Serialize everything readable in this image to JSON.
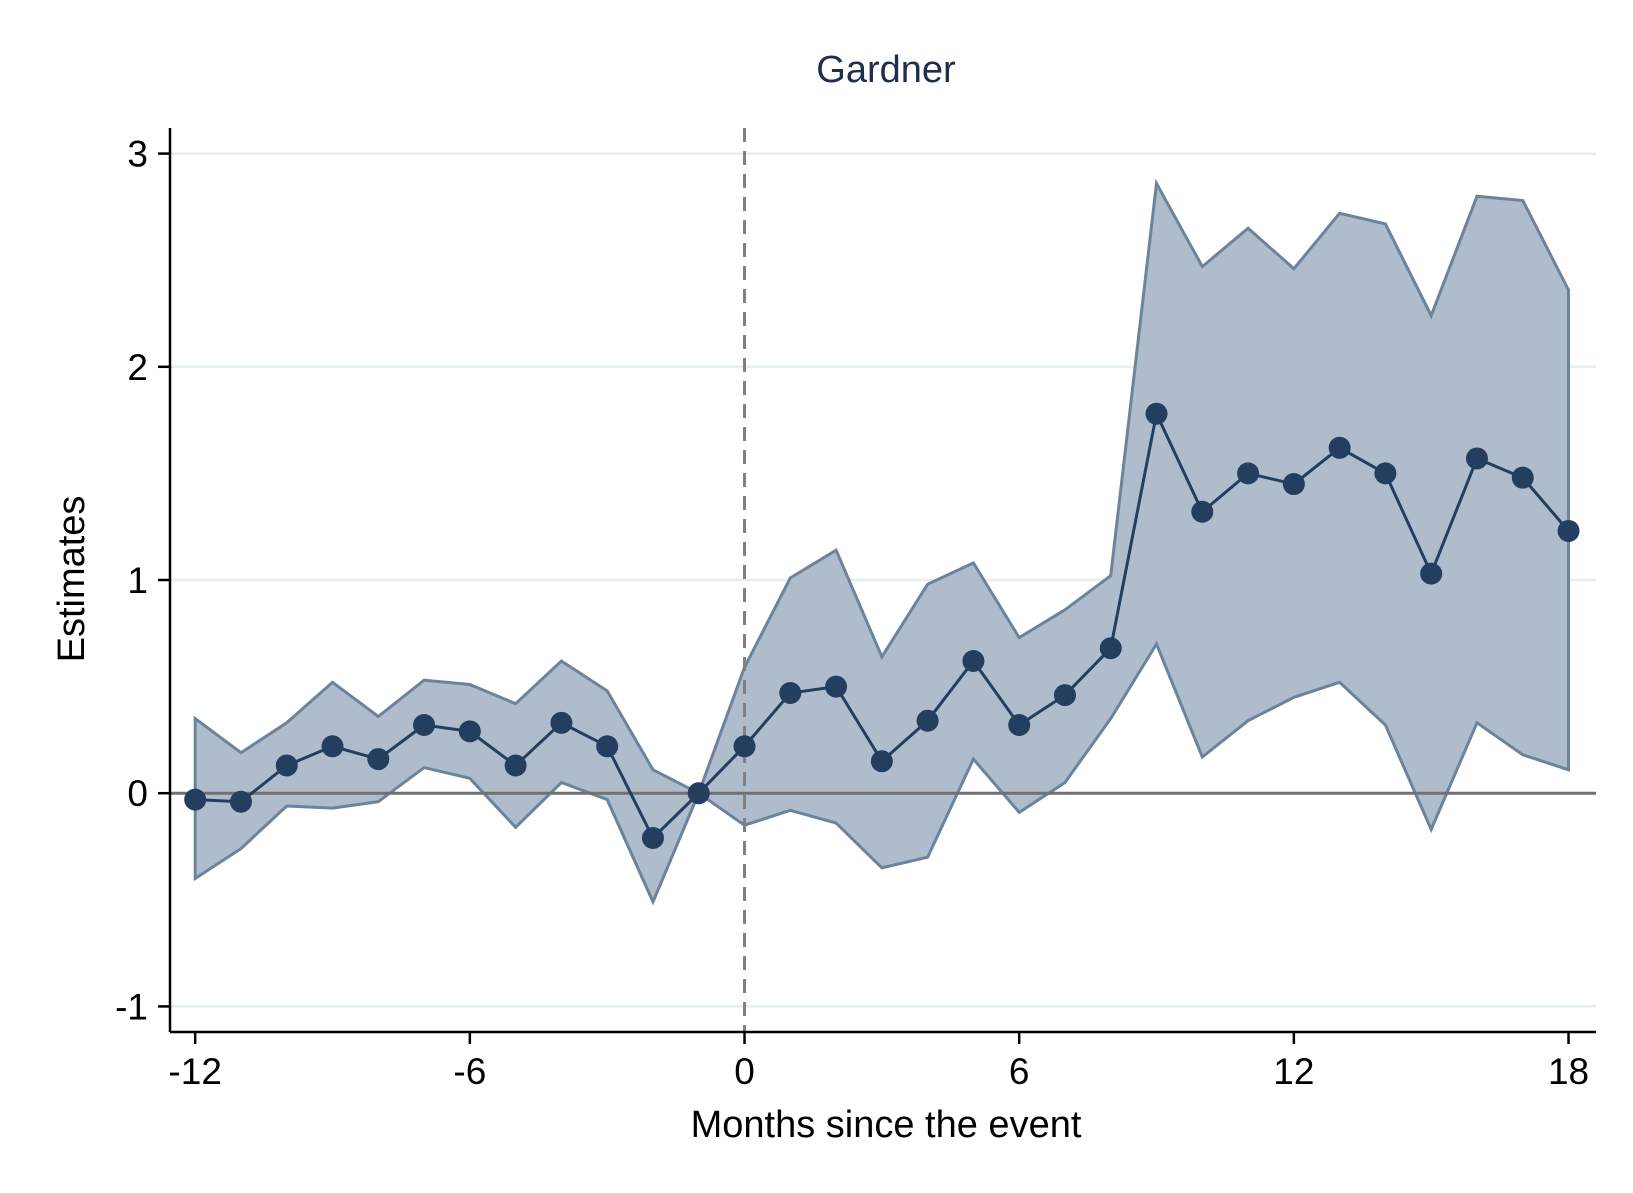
{
  "chart_data": {
    "type": "line",
    "title": "Gardner",
    "xlabel": "Months since the event",
    "ylabel": "Estimates",
    "xlim": [
      -12.55,
      18.6
    ],
    "ylim": [
      -1.12,
      3.12
    ],
    "xticks": [
      -12,
      -6,
      0,
      6,
      12,
      18
    ],
    "yticks": [
      -1,
      0,
      1,
      2,
      3
    ],
    "grid": "horizontal",
    "reference_lines": {
      "horizontal_y": 0,
      "vertical_dashed_x": 0
    },
    "colors": {
      "line": "#233e5f",
      "band_fill": "#aebccb",
      "band_edge": "#6b849c",
      "zero_line": "#707070",
      "vline": "#808080",
      "grid": "#e4eeee"
    },
    "series": [
      {
        "x": [
          -12,
          -11,
          -10,
          -9,
          -8,
          -7,
          -6,
          -5,
          -4,
          -3,
          -2,
          -1,
          0,
          1,
          2,
          3,
          4,
          5,
          6,
          7,
          8,
          9,
          10,
          11,
          12,
          13,
          14,
          15,
          16,
          17,
          18
        ],
        "estimate": [
          -0.03,
          -0.04,
          0.13,
          0.22,
          0.16,
          0.32,
          0.29,
          0.13,
          0.33,
          0.22,
          -0.21,
          0.0,
          0.22,
          0.47,
          0.5,
          0.15,
          0.34,
          0.62,
          0.32,
          0.46,
          0.68,
          1.78,
          1.32,
          1.5,
          1.45,
          1.62,
          1.5,
          1.03,
          1.57,
          1.48,
          1.23
        ],
        "ci_upper": [
          0.35,
          0.19,
          0.33,
          0.52,
          0.36,
          0.53,
          0.51,
          0.42,
          0.62,
          0.48,
          0.11,
          0.0,
          0.59,
          1.01,
          1.14,
          0.64,
          0.98,
          1.08,
          0.73,
          0.86,
          1.02,
          2.86,
          2.47,
          2.65,
          2.46,
          2.72,
          2.67,
          2.24,
          2.8,
          2.78,
          2.36
        ],
        "ci_lower": [
          -0.4,
          -0.26,
          -0.06,
          -0.07,
          -0.04,
          0.12,
          0.07,
          -0.16,
          0.05,
          -0.03,
          -0.51,
          0.0,
          -0.15,
          -0.08,
          -0.14,
          -0.35,
          -0.3,
          0.16,
          -0.09,
          0.05,
          0.35,
          0.7,
          0.17,
          0.34,
          0.45,
          0.52,
          0.32,
          -0.17,
          0.33,
          0.18,
          0.11
        ]
      }
    ]
  }
}
